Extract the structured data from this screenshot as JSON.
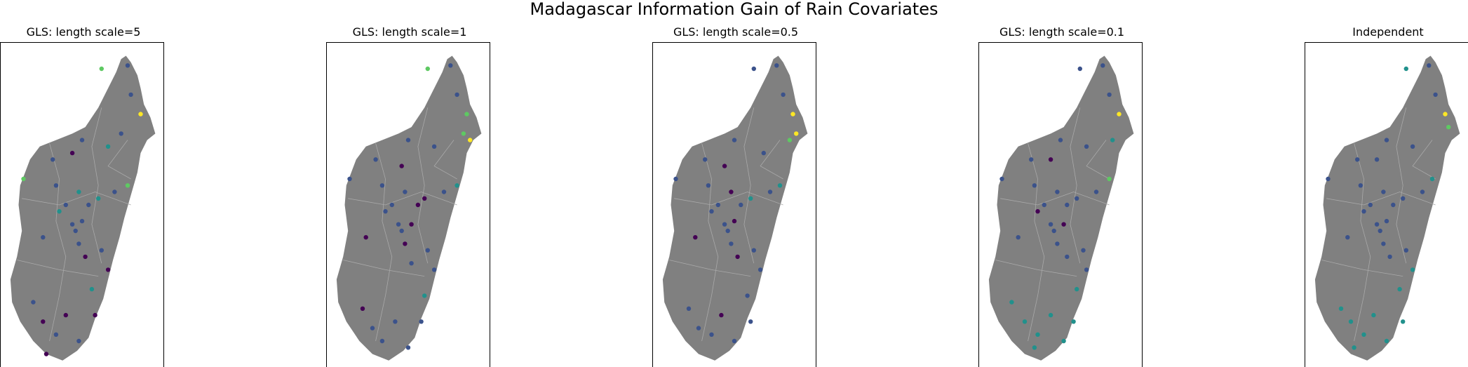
{
  "title": "Madagascar Information Gain of Rain Covariates",
  "land_color": "#808080",
  "border_color": "#a9a9a9",
  "colormap": [
    "#440154",
    "#3b528b",
    "#21918c",
    "#5ec962",
    "#fde725"
  ],
  "panels": [
    {
      "title": "GLS: length scale=5",
      "points": [
        [
          0.62,
          0.08,
          3
        ],
        [
          0.78,
          0.07,
          1
        ],
        [
          0.86,
          0.22,
          4
        ],
        [
          0.8,
          0.16,
          1
        ],
        [
          0.74,
          0.28,
          1
        ],
        [
          0.66,
          0.32,
          2
        ],
        [
          0.5,
          0.3,
          1
        ],
        [
          0.44,
          0.34,
          0
        ],
        [
          0.32,
          0.36,
          1
        ],
        [
          0.14,
          0.42,
          3
        ],
        [
          0.34,
          0.44,
          1
        ],
        [
          0.48,
          0.46,
          2
        ],
        [
          0.54,
          0.5,
          1
        ],
        [
          0.6,
          0.48,
          2
        ],
        [
          0.7,
          0.46,
          1
        ],
        [
          0.78,
          0.44,
          3
        ],
        [
          0.36,
          0.52,
          2
        ],
        [
          0.44,
          0.56,
          1
        ],
        [
          0.48,
          0.62,
          1
        ],
        [
          0.52,
          0.66,
          0
        ],
        [
          0.26,
          0.6,
          1
        ],
        [
          0.62,
          0.64,
          1
        ],
        [
          0.66,
          0.7,
          0
        ],
        [
          0.56,
          0.76,
          2
        ],
        [
          0.2,
          0.8,
          1
        ],
        [
          0.26,
          0.86,
          0
        ],
        [
          0.34,
          0.9,
          1
        ],
        [
          0.4,
          0.84,
          0
        ],
        [
          0.48,
          0.92,
          1
        ],
        [
          0.28,
          0.96,
          0
        ],
        [
          0.58,
          0.84,
          0
        ],
        [
          0.46,
          0.58,
          1
        ],
        [
          0.5,
          0.55,
          1
        ],
        [
          0.4,
          0.5,
          1
        ]
      ]
    },
    {
      "title": "GLS: length scale=1",
      "points": [
        [
          0.62,
          0.08,
          3
        ],
        [
          0.76,
          0.07,
          1
        ],
        [
          0.86,
          0.22,
          3
        ],
        [
          0.84,
          0.28,
          3
        ],
        [
          0.88,
          0.3,
          4
        ],
        [
          0.8,
          0.16,
          1
        ],
        [
          0.66,
          0.32,
          1
        ],
        [
          0.5,
          0.3,
          1
        ],
        [
          0.46,
          0.38,
          0
        ],
        [
          0.3,
          0.36,
          1
        ],
        [
          0.14,
          0.42,
          1
        ],
        [
          0.34,
          0.44,
          1
        ],
        [
          0.48,
          0.46,
          1
        ],
        [
          0.56,
          0.5,
          0
        ],
        [
          0.6,
          0.48,
          0
        ],
        [
          0.72,
          0.46,
          1
        ],
        [
          0.8,
          0.44,
          2
        ],
        [
          0.36,
          0.52,
          1
        ],
        [
          0.44,
          0.56,
          1
        ],
        [
          0.48,
          0.62,
          0
        ],
        [
          0.52,
          0.68,
          1
        ],
        [
          0.24,
          0.6,
          0
        ],
        [
          0.62,
          0.64,
          1
        ],
        [
          0.66,
          0.7,
          1
        ],
        [
          0.6,
          0.78,
          2
        ],
        [
          0.22,
          0.82,
          0
        ],
        [
          0.28,
          0.88,
          1
        ],
        [
          0.34,
          0.92,
          1
        ],
        [
          0.42,
          0.86,
          1
        ],
        [
          0.5,
          0.94,
          1
        ],
        [
          0.58,
          0.86,
          1
        ],
        [
          0.46,
          0.58,
          1
        ],
        [
          0.52,
          0.56,
          0
        ],
        [
          0.4,
          0.5,
          1
        ]
      ]
    },
    {
      "title": "GLS: length scale=0.5",
      "points": [
        [
          0.62,
          0.08,
          1
        ],
        [
          0.76,
          0.07,
          1
        ],
        [
          0.86,
          0.22,
          4
        ],
        [
          0.88,
          0.28,
          4
        ],
        [
          0.84,
          0.3,
          3
        ],
        [
          0.8,
          0.16,
          1
        ],
        [
          0.68,
          0.34,
          1
        ],
        [
          0.5,
          0.3,
          1
        ],
        [
          0.44,
          0.38,
          0
        ],
        [
          0.32,
          0.36,
          1
        ],
        [
          0.14,
          0.42,
          1
        ],
        [
          0.34,
          0.44,
          1
        ],
        [
          0.48,
          0.46,
          0
        ],
        [
          0.54,
          0.5,
          1
        ],
        [
          0.6,
          0.48,
          2
        ],
        [
          0.72,
          0.46,
          1
        ],
        [
          0.78,
          0.44,
          2
        ],
        [
          0.36,
          0.52,
          1
        ],
        [
          0.44,
          0.56,
          1
        ],
        [
          0.48,
          0.62,
          1
        ],
        [
          0.52,
          0.66,
          0
        ],
        [
          0.26,
          0.6,
          0
        ],
        [
          0.62,
          0.64,
          1
        ],
        [
          0.66,
          0.7,
          1
        ],
        [
          0.58,
          0.78,
          1
        ],
        [
          0.22,
          0.82,
          1
        ],
        [
          0.28,
          0.88,
          1
        ],
        [
          0.36,
          0.9,
          1
        ],
        [
          0.42,
          0.84,
          0
        ],
        [
          0.5,
          0.92,
          1
        ],
        [
          0.6,
          0.86,
          1
        ],
        [
          0.46,
          0.58,
          1
        ],
        [
          0.5,
          0.55,
          0
        ],
        [
          0.4,
          0.5,
          1
        ]
      ]
    },
    {
      "title": "GLS: length scale=0.1",
      "points": [
        [
          0.62,
          0.08,
          1
        ],
        [
          0.76,
          0.07,
          1
        ],
        [
          0.86,
          0.22,
          4
        ],
        [
          0.8,
          0.16,
          1
        ],
        [
          0.82,
          0.3,
          2
        ],
        [
          0.66,
          0.32,
          1
        ],
        [
          0.5,
          0.3,
          1
        ],
        [
          0.44,
          0.36,
          0
        ],
        [
          0.32,
          0.36,
          1
        ],
        [
          0.14,
          0.42,
          1
        ],
        [
          0.34,
          0.44,
          1
        ],
        [
          0.48,
          0.46,
          1
        ],
        [
          0.54,
          0.5,
          1
        ],
        [
          0.6,
          0.48,
          1
        ],
        [
          0.72,
          0.46,
          1
        ],
        [
          0.8,
          0.42,
          3
        ],
        [
          0.36,
          0.52,
          0
        ],
        [
          0.44,
          0.56,
          1
        ],
        [
          0.48,
          0.62,
          1
        ],
        [
          0.54,
          0.66,
          1
        ],
        [
          0.24,
          0.6,
          1
        ],
        [
          0.64,
          0.64,
          1
        ],
        [
          0.66,
          0.7,
          1
        ],
        [
          0.6,
          0.76,
          2
        ],
        [
          0.2,
          0.8,
          2
        ],
        [
          0.28,
          0.86,
          2
        ],
        [
          0.36,
          0.9,
          2
        ],
        [
          0.44,
          0.84,
          2
        ],
        [
          0.52,
          0.92,
          2
        ],
        [
          0.58,
          0.86,
          2
        ],
        [
          0.46,
          0.58,
          1
        ],
        [
          0.52,
          0.56,
          0
        ],
        [
          0.4,
          0.5,
          1
        ],
        [
          0.34,
          0.94,
          2
        ]
      ]
    },
    {
      "title": "Independent",
      "points": [
        [
          0.62,
          0.08,
          2
        ],
        [
          0.76,
          0.07,
          1
        ],
        [
          0.86,
          0.22,
          4
        ],
        [
          0.88,
          0.26,
          3
        ],
        [
          0.8,
          0.16,
          1
        ],
        [
          0.66,
          0.32,
          1
        ],
        [
          0.5,
          0.3,
          1
        ],
        [
          0.44,
          0.36,
          1
        ],
        [
          0.32,
          0.36,
          1
        ],
        [
          0.14,
          0.42,
          1
        ],
        [
          0.34,
          0.44,
          1
        ],
        [
          0.48,
          0.46,
          1
        ],
        [
          0.54,
          0.5,
          1
        ],
        [
          0.6,
          0.48,
          1
        ],
        [
          0.72,
          0.46,
          1
        ],
        [
          0.78,
          0.42,
          2
        ],
        [
          0.36,
          0.52,
          1
        ],
        [
          0.44,
          0.56,
          1
        ],
        [
          0.48,
          0.62,
          1
        ],
        [
          0.52,
          0.66,
          1
        ],
        [
          0.26,
          0.6,
          1
        ],
        [
          0.62,
          0.64,
          1
        ],
        [
          0.66,
          0.7,
          2
        ],
        [
          0.58,
          0.76,
          2
        ],
        [
          0.22,
          0.82,
          2
        ],
        [
          0.28,
          0.86,
          2
        ],
        [
          0.36,
          0.9,
          2
        ],
        [
          0.42,
          0.84,
          2
        ],
        [
          0.5,
          0.92,
          2
        ],
        [
          0.6,
          0.86,
          2
        ],
        [
          0.46,
          0.58,
          1
        ],
        [
          0.5,
          0.55,
          1
        ],
        [
          0.4,
          0.5,
          1
        ],
        [
          0.3,
          0.94,
          2
        ]
      ]
    }
  ]
}
